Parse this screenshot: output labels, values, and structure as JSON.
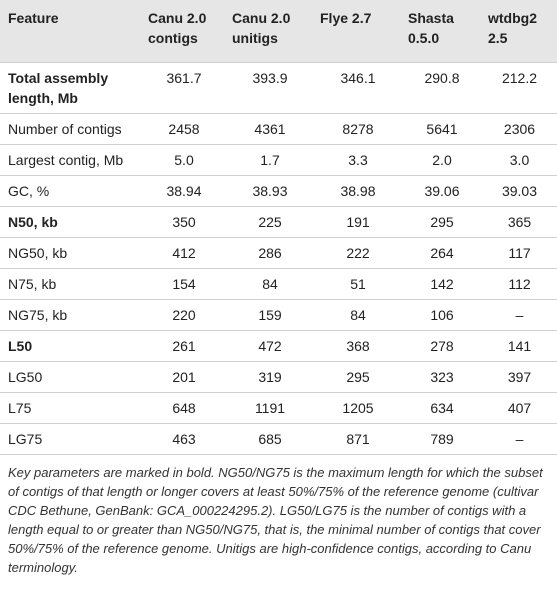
{
  "table": {
    "headers": [
      "Feature",
      "Canu 2.0 contigs",
      "Canu 2.0 unitigs",
      "Flye 2.7",
      "Shasta 0.5.0",
      "wtdbg2 2.5"
    ],
    "rows": [
      {
        "feature": "Total assembly length, Mb",
        "bold": true,
        "values": [
          "361.7",
          "393.9",
          "346.1",
          "290.8",
          "212.2"
        ]
      },
      {
        "feature": "Number of contigs",
        "bold": false,
        "values": [
          "2458",
          "4361",
          "8278",
          "5641",
          "2306"
        ]
      },
      {
        "feature": "Largest contig, Mb",
        "bold": false,
        "values": [
          "5.0",
          "1.7",
          "3.3",
          "2.0",
          "3.0"
        ]
      },
      {
        "feature": "GC, %",
        "bold": false,
        "values": [
          "38.94",
          "38.93",
          "38.98",
          "39.06",
          "39.03"
        ]
      },
      {
        "feature": "N50, kb",
        "bold": true,
        "values": [
          "350",
          "225",
          "191",
          "295",
          "365"
        ]
      },
      {
        "feature": "NG50, kb",
        "bold": false,
        "values": [
          "412",
          "286",
          "222",
          "264",
          "117"
        ]
      },
      {
        "feature": "N75, kb",
        "bold": false,
        "values": [
          "154",
          "84",
          "51",
          "142",
          "112"
        ]
      },
      {
        "feature": "NG75, kb",
        "bold": false,
        "values": [
          "220",
          "159",
          "84",
          "106",
          "–"
        ]
      },
      {
        "feature": "L50",
        "bold": true,
        "values": [
          "261",
          "472",
          "368",
          "278",
          "141"
        ]
      },
      {
        "feature": "LG50",
        "bold": false,
        "values": [
          "201",
          "319",
          "295",
          "323",
          "397"
        ]
      },
      {
        "feature": "L75",
        "bold": false,
        "values": [
          "648",
          "1191",
          "1205",
          "634",
          "407"
        ]
      },
      {
        "feature": "LG75",
        "bold": false,
        "values": [
          "463",
          "685",
          "871",
          "789",
          "–"
        ]
      }
    ],
    "caption": "Key parameters are marked in bold. NG50/NG75 is the maximum length for which the subset of contigs of that length or longer covers at least 50%/75% of the reference genome (cultivar CDC Bethune, GenBank: GCA_000224295.2). LG50/LG75 is the number of contigs with a length equal to or greater than NG50/NG75, that is, the minimal number of contigs that cover 50%/75% of the reference genome. Unitigs are high-confidence contigs, according to Canu terminology."
  }
}
